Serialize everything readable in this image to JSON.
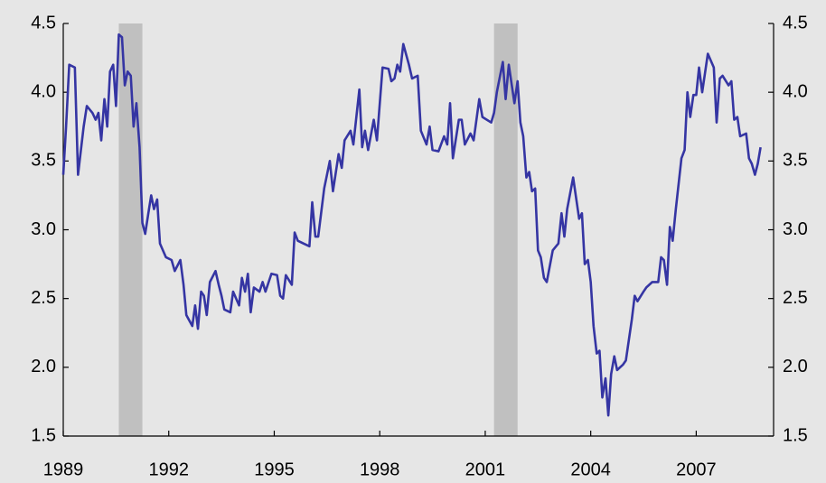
{
  "chart_data": {
    "type": "line",
    "x": [
      1989.0,
      1989.08,
      1989.17,
      1989.33,
      1989.42,
      1989.58,
      1989.67,
      1989.83,
      1989.92,
      1990.0,
      1990.08,
      1990.17,
      1990.25,
      1990.33,
      1990.42,
      1990.5,
      1990.58,
      1990.67,
      1990.75,
      1990.83,
      1990.92,
      1991.0,
      1991.08,
      1991.17,
      1991.25,
      1991.33,
      1991.42,
      1991.5,
      1991.58,
      1991.67,
      1991.75,
      1991.92,
      1992.08,
      1992.17,
      1992.33,
      1992.42,
      1992.5,
      1992.67,
      1992.75,
      1992.83,
      1992.92,
      1993.0,
      1993.08,
      1993.17,
      1993.33,
      1993.42,
      1993.5,
      1993.58,
      1993.75,
      1993.83,
      1994.0,
      1994.08,
      1994.17,
      1994.25,
      1994.33,
      1994.42,
      1994.58,
      1994.67,
      1994.75,
      1994.92,
      1995.08,
      1995.17,
      1995.25,
      1995.33,
      1995.5,
      1995.58,
      1995.67,
      1995.83,
      1996.0,
      1996.08,
      1996.17,
      1996.25,
      1996.42,
      1996.58,
      1996.67,
      1996.83,
      1996.92,
      1997.0,
      1997.17,
      1997.25,
      1997.42,
      1997.5,
      1997.58,
      1997.67,
      1997.83,
      1997.92,
      1998.08,
      1998.25,
      1998.33,
      1998.42,
      1998.5,
      1998.58,
      1998.67,
      1998.83,
      1998.92,
      1999.08,
      1999.17,
      1999.33,
      1999.42,
      1999.5,
      1999.67,
      1999.83,
      1999.92,
      2000.0,
      2000.08,
      2000.25,
      2000.33,
      2000.42,
      2000.58,
      2000.67,
      2000.83,
      2000.92,
      2001.17,
      2001.25,
      2001.33,
      2001.5,
      2001.58,
      2001.67,
      2001.83,
      2001.92,
      2002.0,
      2002.08,
      2002.17,
      2002.25,
      2002.33,
      2002.42,
      2002.5,
      2002.58,
      2002.67,
      2002.75,
      2002.92,
      2003.08,
      2003.17,
      2003.25,
      2003.33,
      2003.5,
      2003.67,
      2003.75,
      2003.83,
      2003.92,
      2004.0,
      2004.08,
      2004.17,
      2004.25,
      2004.33,
      2004.42,
      2004.5,
      2004.58,
      2004.67,
      2004.75,
      2004.92,
      2005.0,
      2005.17,
      2005.25,
      2005.33,
      2005.5,
      2005.58,
      2005.75,
      2005.92,
      2006.0,
      2006.08,
      2006.17,
      2006.25,
      2006.33,
      2006.42,
      2006.58,
      2006.67,
      2006.75,
      2006.83,
      2006.92,
      2007.0,
      2007.08,
      2007.17,
      2007.33,
      2007.5,
      2007.58,
      2007.67,
      2007.75,
      2007.92,
      2008.0,
      2008.08,
      2008.17,
      2008.25,
      2008.42,
      2008.5,
      2008.58,
      2008.67,
      2008.75,
      2008.83
    ],
    "values": [
      3.4,
      3.75,
      4.2,
      4.18,
      3.4,
      3.75,
      3.9,
      3.85,
      3.8,
      3.85,
      3.65,
      3.95,
      3.75,
      4.15,
      4.2,
      3.9,
      4.42,
      4.4,
      4.05,
      4.15,
      4.12,
      3.75,
      3.92,
      3.6,
      3.05,
      2.97,
      3.12,
      3.25,
      3.15,
      3.22,
      2.9,
      2.8,
      2.78,
      2.7,
      2.78,
      2.6,
      2.38,
      2.3,
      2.45,
      2.28,
      2.55,
      2.52,
      2.38,
      2.62,
      2.7,
      2.6,
      2.52,
      2.42,
      2.4,
      2.55,
      2.45,
      2.65,
      2.55,
      2.68,
      2.4,
      2.58,
      2.55,
      2.62,
      2.55,
      2.68,
      2.67,
      2.52,
      2.5,
      2.67,
      2.6,
      2.98,
      2.92,
      2.9,
      2.88,
      3.2,
      2.95,
      2.95,
      3.3,
      3.5,
      3.28,
      3.55,
      3.45,
      3.65,
      3.72,
      3.62,
      4.02,
      3.6,
      3.72,
      3.58,
      3.8,
      3.65,
      4.18,
      4.17,
      4.08,
      4.1,
      4.2,
      4.15,
      4.35,
      4.2,
      4.1,
      4.12,
      3.72,
      3.62,
      3.75,
      3.58,
      3.57,
      3.68,
      3.62,
      3.92,
      3.52,
      3.8,
      3.8,
      3.62,
      3.7,
      3.65,
      3.95,
      3.82,
      3.78,
      3.85,
      4.0,
      4.22,
      3.95,
      4.2,
      3.92,
      4.08,
      3.78,
      3.68,
      3.38,
      3.42,
      3.28,
      3.3,
      2.85,
      2.8,
      2.65,
      2.62,
      2.85,
      2.9,
      3.12,
      2.95,
      3.15,
      3.38,
      3.08,
      3.12,
      2.75,
      2.78,
      2.62,
      2.3,
      2.1,
      2.12,
      1.78,
      1.92,
      1.65,
      1.95,
      2.08,
      1.98,
      2.02,
      2.05,
      2.35,
      2.52,
      2.48,
      2.55,
      2.58,
      2.62,
      2.62,
      2.8,
      2.78,
      2.6,
      3.02,
      2.92,
      3.15,
      3.52,
      3.58,
      4.0,
      3.82,
      3.98,
      3.98,
      4.18,
      4.0,
      4.28,
      4.18,
      3.78,
      4.1,
      4.12,
      4.05,
      4.08,
      3.8,
      3.82,
      3.68,
      3.7,
      3.52,
      3.48,
      3.4,
      3.48,
      3.6
    ],
    "color": "#3535a3",
    "shaded_ranges": [
      [
        1990.58,
        1991.25
      ],
      [
        2001.25,
        2001.92
      ]
    ],
    "shade_color": "#c0c0c0",
    "xlim": [
      1989,
      2009.2
    ],
    "xticks": [
      1989,
      1992,
      1995,
      1998,
      2001,
      2004,
      2007
    ],
    "ylim": [
      1.5,
      4.5
    ],
    "yticks": [
      1.5,
      {
        "value": 2,
        "label": "2.0"
      },
      2.5,
      {
        "value": 3,
        "label": "3.0"
      },
      3.5,
      {
        "value": 4,
        "label": "4.0"
      },
      4.5
    ],
    "right_axis_labels": true
  }
}
